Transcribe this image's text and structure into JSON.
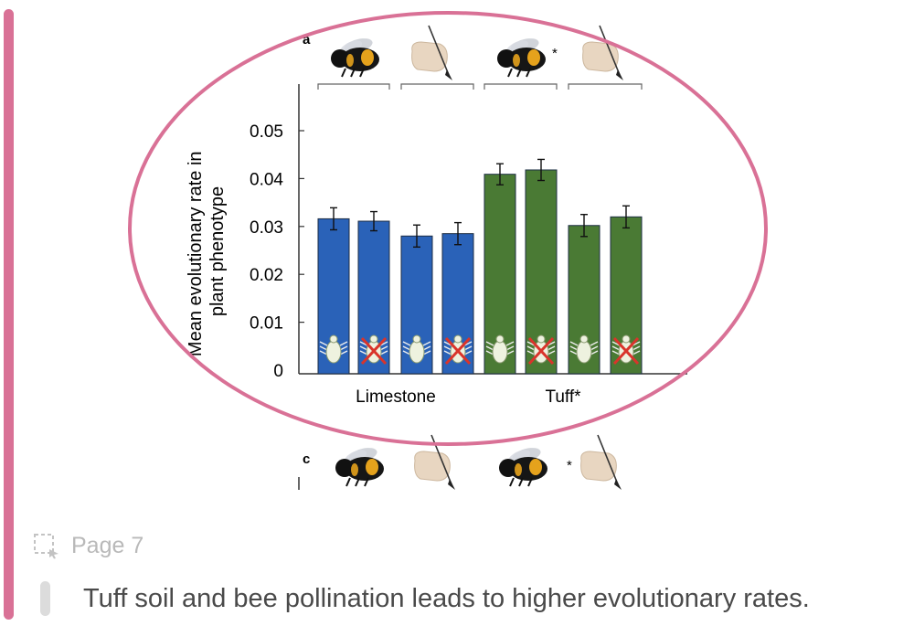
{
  "chart_data": {
    "type": "bar",
    "panel_label": "a",
    "ylabel": "Mean evolutionary rate in plant phenotype",
    "ylim": [
      0,
      0.05
    ],
    "yticks": [
      "0",
      "0.01",
      "0.02",
      "0.03",
      "0.04",
      "0.05"
    ],
    "groups": [
      {
        "label": "Limestone",
        "color": "#2a62b8"
      },
      {
        "label": "Tuff*",
        "color": "#4a7a34"
      }
    ],
    "bars": [
      {
        "group": 0,
        "pollinator": "bee",
        "herbivore": "present",
        "value": 0.0316,
        "err": 0.0023
      },
      {
        "group": 0,
        "pollinator": "bee",
        "herbivore": "absent",
        "value": 0.0311,
        "err": 0.002
      },
      {
        "group": 0,
        "pollinator": "hand",
        "herbivore": "present",
        "value": 0.028,
        "err": 0.0023
      },
      {
        "group": 0,
        "pollinator": "hand",
        "herbivore": "absent",
        "value": 0.0285,
        "err": 0.0023
      },
      {
        "group": 1,
        "pollinator": "bee",
        "herbivore": "present",
        "value": 0.0409,
        "err": 0.0022
      },
      {
        "group": 1,
        "pollinator": "bee",
        "herbivore": "absent",
        "value": 0.0418,
        "err": 0.0022
      },
      {
        "group": 1,
        "pollinator": "hand",
        "herbivore": "present",
        "value": 0.0302,
        "err": 0.0023
      },
      {
        "group": 1,
        "pollinator": "hand",
        "herbivore": "absent",
        "value": 0.032,
        "err": 0.0023
      }
    ],
    "pollinator_headers": [
      {
        "icon": "bumblebee-icon",
        "star": ""
      },
      {
        "icon": "hand-brush-icon",
        "star": ""
      },
      {
        "icon": "bumblebee-icon",
        "star": "*"
      },
      {
        "icon": "hand-brush-icon",
        "star": ""
      }
    ],
    "next_panel_label": "c",
    "next_panel_star": "*",
    "annotation_color": "#d97196"
  },
  "footer": {
    "page_label": "Page 7",
    "note": "Tuff soil and bee pollination leads to higher evolutionary rates."
  }
}
